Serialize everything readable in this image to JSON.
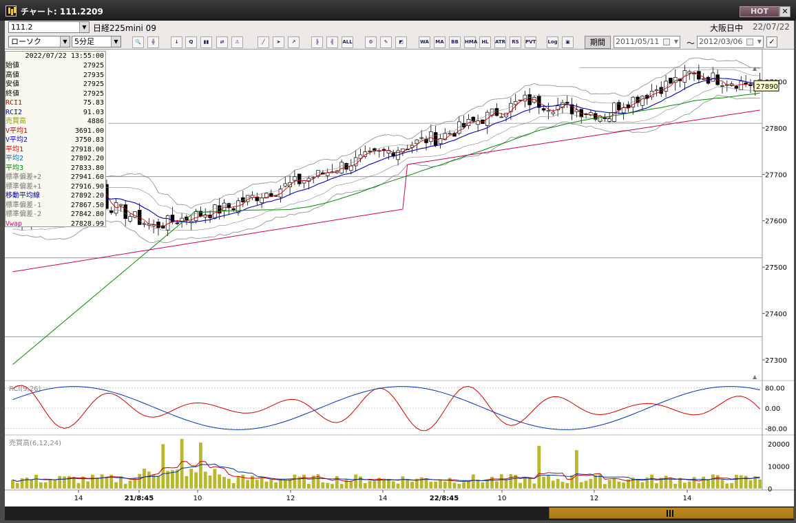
{
  "window": {
    "title": "チャート: 111.2209",
    "hot_label": "HOT",
    "close_label": "✕"
  },
  "toolbar": {
    "symbol_code": "111.2",
    "symbol_name": "日経225mini 09",
    "exchange_status": "大阪日中",
    "date": "22/07/22",
    "chart_type": "ローソク",
    "interval": "5分足",
    "period_label": "期間",
    "start_date": "2011/05/11",
    "end_date": "2012/03/06",
    "range_sep": "～",
    "tool_icons": [
      {
        "name": "zoom-icon",
        "glyph": "🔍"
      },
      {
        "name": "crosshair-icon",
        "glyph": "╬"
      },
      {
        "name": "download-icon",
        "glyph": "↓"
      },
      {
        "name": "search-chart-icon",
        "glyph": "Q"
      },
      {
        "name": "chart-settings-icon",
        "glyph": "▮▮"
      },
      {
        "name": "split-icon",
        "glyph": "⇄"
      },
      {
        "name": "warning-icon",
        "glyph": "⚠"
      },
      {
        "name": "line-tool-icon",
        "glyph": "╱"
      },
      {
        "name": "cursor-icon",
        "glyph": "➤"
      },
      {
        "name": "fibonacci-icon",
        "glyph": "↗"
      },
      {
        "name": "candle-select-icon",
        "glyph": "╠"
      },
      {
        "name": "candle-toggle-icon",
        "glyph": "╣"
      },
      {
        "name": "all-icon",
        "glyph": "ALL"
      },
      {
        "name": "gear-icon",
        "glyph": "⚙"
      },
      {
        "name": "wrench-icon",
        "glyph": "✎"
      },
      {
        "name": "color-icon",
        "glyph": "◩"
      },
      {
        "name": "weighted-avg-icon",
        "glyph": "WA"
      },
      {
        "name": "moving-avg-icon",
        "glyph": "MA"
      },
      {
        "name": "bollinger-icon",
        "glyph": "BB"
      },
      {
        "name": "envelope-icon",
        "glyph": "HMA"
      },
      {
        "name": "high-low-icon",
        "glyph": "HL"
      },
      {
        "name": "atr-icon",
        "glyph": "ATR"
      },
      {
        "name": "psychological-icon",
        "glyph": "RS"
      },
      {
        "name": "pivot-icon",
        "glyph": "PVT"
      },
      {
        "name": "log-icon",
        "glyph": "Log"
      },
      {
        "name": "export-icon",
        "glyph": "▣"
      }
    ]
  },
  "info": {
    "timestamp": "2022/07/22  13:55:00",
    "rows": [
      {
        "label": "始値",
        "value": "27925",
        "color": "#000000"
      },
      {
        "label": "高値",
        "value": "27935",
        "color": "#000000"
      },
      {
        "label": "安値",
        "value": "27925",
        "color": "#000000"
      },
      {
        "label": "終値",
        "value": "27925",
        "color": "#000000"
      },
      {
        "label": "RCI1",
        "value": "75.83",
        "color": "#cc0000"
      },
      {
        "label": "RCI2",
        "value": "91.03",
        "color": "#0000cc"
      },
      {
        "label": "売買高",
        "value": "4886",
        "color": "#999900"
      },
      {
        "label": "V平均1",
        "value": "3691.00",
        "color": "#cc0000"
      },
      {
        "label": "V平均2",
        "value": "3750.83",
        "color": "#0000cc"
      },
      {
        "label": "平均1",
        "value": "27918.00",
        "color": "#cc0000"
      },
      {
        "label": "平均2",
        "value": "27892.20",
        "color": "#0066cc"
      },
      {
        "label": "平均3",
        "value": "27833.80",
        "color": "#008800"
      },
      {
        "label": "標準偏差+2",
        "value": "27941.60",
        "color": "#777777"
      },
      {
        "label": "標準偏差+1",
        "value": "27916.90",
        "color": "#777777"
      },
      {
        "label": "移動平均線",
        "value": "27892.20",
        "color": "#000099"
      },
      {
        "label": "標準偏差-1",
        "value": "27867.50",
        "color": "#777777"
      },
      {
        "label": "標準偏差-2",
        "value": "27842.80",
        "color": "#777777"
      },
      {
        "label": "Vwap",
        "value": "27828.99",
        "color": "#cc0099"
      }
    ]
  },
  "chart_data": {
    "type": "candlestick",
    "price_axis": {
      "ticks": [
        27300,
        27400,
        27500,
        27600,
        27700,
        27800,
        27900
      ],
      "labels": [
        "27300",
        "27400",
        "27500",
        "27600",
        "27700",
        "27800",
        "27900"
      ],
      "range": [
        27260,
        27960
      ]
    },
    "current_price_label": "27890",
    "current_price": 27890,
    "rci": {
      "label": "RCI(9,26)",
      "ticks": [
        "80.00",
        "0.00",
        "-80.00"
      ],
      "range": [
        -100,
        100
      ]
    },
    "volume": {
      "label": "売買高(6,12,24)",
      "ticks": [
        "20000",
        "10000",
        "0"
      ],
      "range": [
        0,
        23000
      ]
    },
    "x_labels": [
      "14",
      "21/8:45",
      "10",
      "12",
      "14",
      "22/8:45",
      "10",
      "12",
      "14"
    ],
    "colors": {
      "up": "#ffffff",
      "down": "#000000",
      "avg1": "#cc0000",
      "ma": "#0000aa",
      "avg3": "#008800",
      "vwap": "#cc0066",
      "band": "#888888",
      "rci1": "#cc0000",
      "rci2": "#0033aa",
      "volume": "#b8b82a"
    },
    "candles": 160
  },
  "scrollbar": {
    "position": 0.7
  }
}
